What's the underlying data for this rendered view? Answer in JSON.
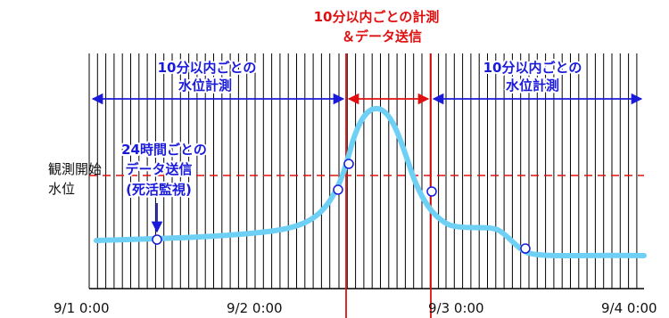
{
  "top_label_line1": "10分以内ごとの計測",
  "top_label_line2": "＆データ送信",
  "left_interval_line1": "10分以内ごとの",
  "left_interval_line2": "水位計測",
  "right_interval_line1": "10分以内ごとの",
  "right_interval_line2": "水位計測",
  "heartbeat_line1": "24時間ごとの",
  "heartbeat_line2": "データ送信",
  "heartbeat_line3": "(死活監視)",
  "threshold_label_line1": "観測開始",
  "threshold_label_line2": "水位",
  "x_ticks": [
    "9/1 0:00",
    "9/2 0:00",
    "9/3 0:00",
    "9/4 0:00"
  ],
  "colors": {
    "water_curve": "#6fd0f5",
    "blue_text": "#1a1ad9",
    "red": "#e01010",
    "grid": "#000000"
  }
}
